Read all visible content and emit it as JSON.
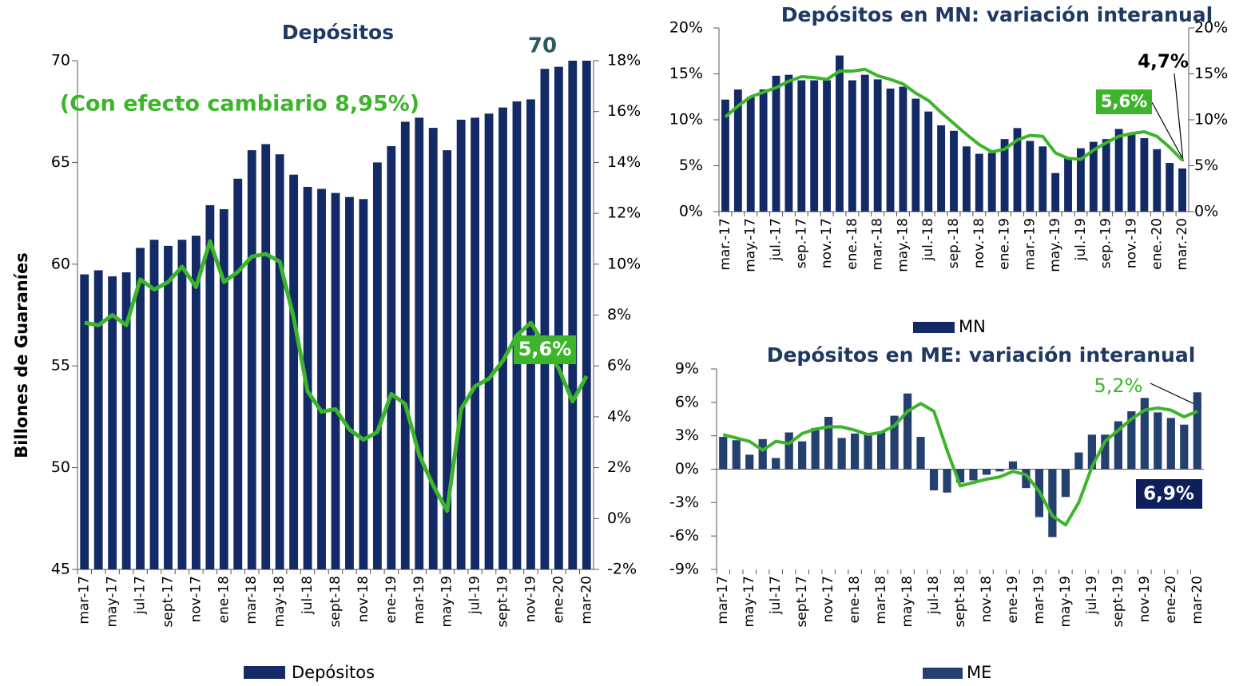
{
  "chart_data": [
    {
      "type": "bar",
      "title": "Depósitos",
      "y_label": "Billones de Guaraníes",
      "categories": [
        "mar-17",
        null,
        "may-17",
        null,
        "jul-17",
        null,
        "sept-17",
        null,
        "nov-17",
        null,
        "ene-18",
        null,
        "mar-18",
        null,
        "may-18",
        null,
        "jul-18",
        null,
        "sept-18",
        null,
        "nov-18",
        null,
        "ene-19",
        null,
        "mar-19",
        null,
        "may-19",
        null,
        "jul-19",
        null,
        "sept-19",
        null,
        "nov-19",
        null,
        "ene-20",
        null,
        "mar-20"
      ],
      "series": [
        {
          "name": "Depósitos",
          "type": "bar",
          "color": "#132a66",
          "values": [
            59.5,
            59.7,
            59.4,
            59.6,
            60.8,
            61.2,
            60.9,
            61.2,
            61.4,
            62.9,
            62.7,
            64.2,
            65.6,
            65.9,
            65.4,
            64.4,
            63.8,
            63.7,
            63.5,
            63.3,
            63.2,
            65.0,
            65.8,
            67.0,
            67.2,
            66.7,
            65.6,
            67.1,
            67.2,
            67.4,
            67.7,
            68.0,
            68.1,
            69.6,
            69.7,
            70.0,
            70.0
          ]
        },
        {
          "type": "line",
          "axis": "y2",
          "color": "#3cb52a",
          "values": [
            7.7,
            7.6,
            8.0,
            7.6,
            9.4,
            9.0,
            9.3,
            9.9,
            9.1,
            10.9,
            9.3,
            9.7,
            10.3,
            10.4,
            10.1,
            7.9,
            5.0,
            4.2,
            4.3,
            3.5,
            3.1,
            3.4,
            4.9,
            4.5,
            2.5,
            1.3,
            0.3,
            4.3,
            5.2,
            5.5,
            6.2,
            7.2,
            7.7,
            6.8,
            5.9,
            4.6,
            5.6
          ]
        }
      ],
      "ylim": [
        45,
        70
      ],
      "yticks": [
        45,
        50,
        55,
        60,
        65,
        70
      ],
      "y2lim": [
        -2,
        18
      ],
      "y2ticks": [
        {
          "value": -2,
          "label": "-2%"
        },
        {
          "value": 0,
          "label": "0%"
        },
        {
          "value": 2,
          "label": "2%"
        },
        {
          "value": 4,
          "label": "4%"
        },
        {
          "value": 6,
          "label": "6%"
        },
        {
          "value": 8,
          "label": "8%"
        },
        {
          "value": 10,
          "label": "10%"
        },
        {
          "value": 12,
          "label": "12%"
        },
        {
          "value": 14,
          "label": "14%"
        },
        {
          "value": 16,
          "label": "16%"
        },
        {
          "value": 18,
          "label": "18%"
        }
      ],
      "annotations": [
        "70",
        "(Con efecto cambiario 8,95%)",
        "5,6%"
      ]
    },
    {
      "type": "bar",
      "title": "Depósitos en MN: variación interanual",
      "categories": [
        "mar.-17",
        null,
        "may.-17",
        null,
        "jul.-17",
        null,
        "sep.-17",
        null,
        "nov.-17",
        null,
        "ene.-18",
        null,
        "mar.-18",
        null,
        "may.-18",
        null,
        "jul.-18",
        null,
        "sep.-18",
        null,
        "nov.-18",
        null,
        "ene.-19",
        null,
        "mar.-19",
        null,
        "may.-19",
        null,
        "jul.-19",
        null,
        "sep.-19",
        null,
        "nov.-19",
        null,
        "ene.-20",
        null,
        "mar.-20"
      ],
      "series": [
        {
          "name": "MN",
          "type": "bar",
          "color": "#132a66",
          "values": [
            12.2,
            13.3,
            12.5,
            13.3,
            14.8,
            14.9,
            14.3,
            14.3,
            14.3,
            17.0,
            14.3,
            14.9,
            14.4,
            13.4,
            13.6,
            12.3,
            10.9,
            9.4,
            8.8,
            7.1,
            6.3,
            6.4,
            7.9,
            9.1,
            7.7,
            7.1,
            4.2,
            5.8,
            6.9,
            7.6,
            7.9,
            9.0,
            8.5,
            8.0,
            6.8,
            5.3,
            4.7
          ]
        },
        {
          "type": "line",
          "color": "#3cb52a",
          "values": [
            10.3,
            11.5,
            12.5,
            13.0,
            13.5,
            14.2,
            14.7,
            14.6,
            14.4,
            15.3,
            15.3,
            15.5,
            14.8,
            14.4,
            13.9,
            12.9,
            12.1,
            10.8,
            9.6,
            8.4,
            7.3,
            6.5,
            6.8,
            7.8,
            8.3,
            8.2,
            6.4,
            5.8,
            5.7,
            6.7,
            7.5,
            8.2,
            8.5,
            8.7,
            8.2,
            7.0,
            5.6
          ]
        }
      ],
      "ylim": [
        0,
        20
      ],
      "yticks": [
        {
          "value": 0,
          "label": "0%"
        },
        {
          "value": 5,
          "label": "5%"
        },
        {
          "value": 10,
          "label": "10%"
        },
        {
          "value": 15,
          "label": "15%"
        },
        {
          "value": 20,
          "label": "20%"
        }
      ],
      "y2lim": [
        0,
        20
      ],
      "y2ticks": [
        {
          "value": 0,
          "label": "0%"
        },
        {
          "value": 5,
          "label": "5%"
        },
        {
          "value": 10,
          "label": "10%"
        },
        {
          "value": 15,
          "label": "15%"
        },
        {
          "value": 20,
          "label": "20%"
        }
      ],
      "annotations": [
        "4,7%",
        "5,6%"
      ]
    },
    {
      "type": "bar",
      "title": "Depósitos en ME: variación interanual",
      "categories": [
        "mar-17",
        null,
        "may-17",
        null,
        "jul-17",
        null,
        "sept-17",
        null,
        "nov-17",
        null,
        "ene-18",
        null,
        "mar-18",
        null,
        "may-18",
        null,
        "jul-18",
        null,
        "sept-18",
        null,
        "nov-18",
        null,
        "ene-19",
        null,
        "mar-19",
        null,
        "may-19",
        null,
        "jul-19",
        null,
        "sept-19",
        null,
        "nov-19",
        null,
        "ene-20",
        null,
        "mar-20"
      ],
      "series": [
        {
          "name": "ME",
          "type": "bar",
          "color": "#24406f",
          "values": [
            2.9,
            2.6,
            1.3,
            2.7,
            1.0,
            3.3,
            2.5,
            3.7,
            4.7,
            2.8,
            3.2,
            3.1,
            3.4,
            4.8,
            6.8,
            2.9,
            -1.9,
            -2.1,
            -1.2,
            -1.0,
            -0.5,
            -0.2,
            0.7,
            -1.7,
            -4.3,
            -6.1,
            -2.5,
            1.5,
            3.1,
            3.1,
            4.3,
            5.2,
            6.4,
            5.1,
            4.6,
            4.0,
            6.9
          ]
        },
        {
          "type": "line",
          "color": "#3cb52a",
          "values": [
            3.1,
            2.8,
            2.5,
            1.7,
            2.5,
            2.3,
            3.2,
            3.6,
            3.8,
            3.8,
            3.5,
            3.1,
            3.3,
            3.9,
            5.2,
            5.9,
            5.2,
            1.7,
            -1.5,
            -1.2,
            -0.9,
            -0.7,
            -0.2,
            -0.5,
            -2.0,
            -4.2,
            -5.0,
            -3.0,
            0.2,
            2.5,
            3.5,
            4.5,
            5.3,
            5.5,
            5.3,
            4.7,
            5.2
          ]
        }
      ],
      "ylim": [
        -9,
        9
      ],
      "yticks": [
        {
          "value": -9,
          "label": "-9%"
        },
        {
          "value": -6,
          "label": "-6%"
        },
        {
          "value": -3,
          "label": "-3%"
        },
        {
          "value": 0,
          "label": "0%"
        },
        {
          "value": 3,
          "label": "3%"
        },
        {
          "value": 6,
          "label": "6%"
        },
        {
          "value": 9,
          "label": "9%"
        }
      ],
      "annotations": [
        "5,2%",
        "6,9%"
      ]
    }
  ]
}
